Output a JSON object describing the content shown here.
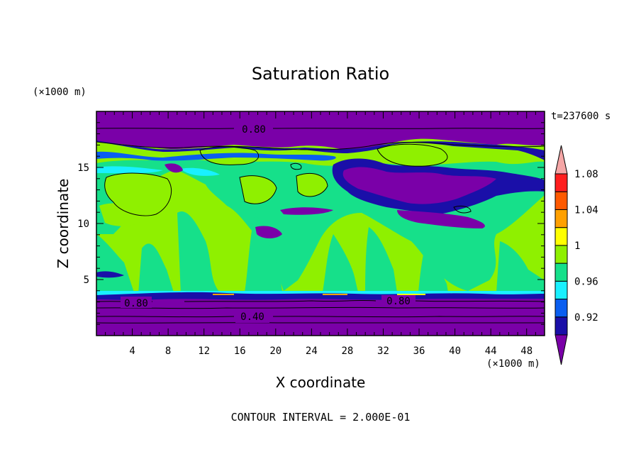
{
  "chart_data": {
    "type": "heatmap",
    "title": "Saturation Ratio",
    "xlabel": "X coordinate",
    "ylabel": "Z coordinate",
    "x_unit": "(×1000 m)",
    "y_unit": "(×1000 m)",
    "time_label": "t=237600 s",
    "footer": "CONTOUR INTERVAL = 2.000E-01",
    "xlim": [
      0,
      50
    ],
    "ylim": [
      0,
      20
    ],
    "x_ticks": [
      4,
      8,
      12,
      16,
      20,
      24,
      28,
      32,
      36,
      40,
      44,
      48
    ],
    "y_ticks": [
      5,
      10,
      15
    ],
    "contour_labels": [
      {
        "text": "0.80",
        "x": 17.5,
        "z": 18.5
      },
      {
        "text": "0.80",
        "x": 4.5,
        "z": 2.9
      },
      {
        "text": "0.80",
        "x": 34.5,
        "z": 3.0
      },
      {
        "text": "0.40",
        "x": 17.5,
        "z": 1.7
      }
    ],
    "colorbar": {
      "levels": [
        0.92,
        0.94,
        0.96,
        0.98,
        1.0,
        1.02,
        1.04,
        1.06,
        1.08,
        1.1
      ],
      "labels": [
        "0.92",
        "0.96",
        "1",
        "1.04",
        "1.08"
      ],
      "colors": [
        "#7a00a8",
        "#1a0fa8",
        "#0a5ef0",
        "#19f0ff",
        "#16e08a",
        "#8ff000",
        "#ffff00",
        "#ffa000",
        "#ff5a00",
        "#ff1e1e",
        "#f5a6a6"
      ],
      "extend_low_color": "#7a00a8",
      "extend_high_color": "#f5a6a6"
    }
  }
}
